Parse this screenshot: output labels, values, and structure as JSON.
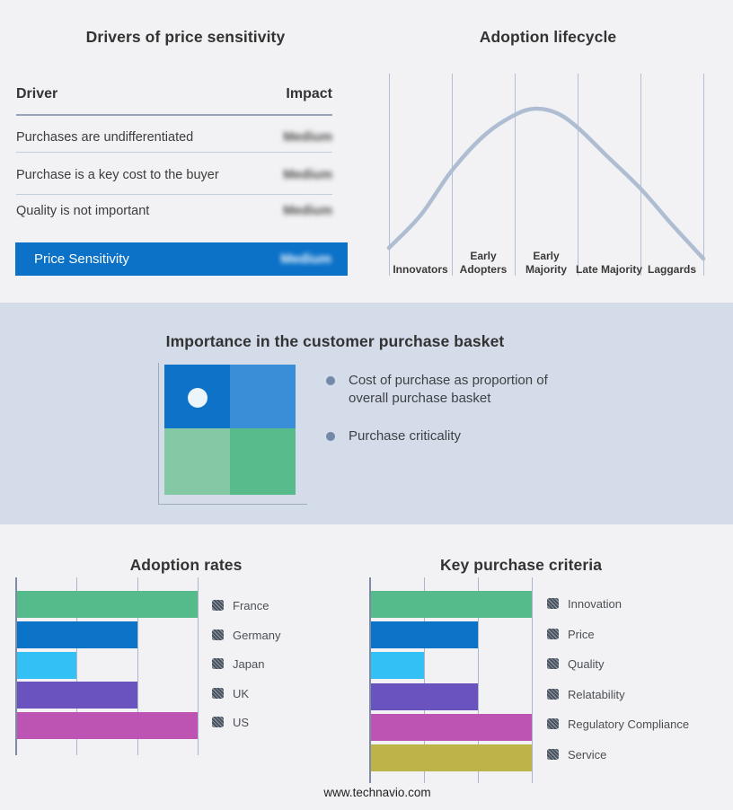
{
  "footer": {
    "text": "www.technavio.com"
  },
  "drivers_panel": {
    "title": "Drivers of price sensitivity",
    "columns": {
      "driver": "Driver",
      "impact": "Impact"
    },
    "impact_values_blurred": true,
    "rows": [
      {
        "driver": "Purchases are undifferentiated",
        "impact": "Medium"
      },
      {
        "driver": "Purchase is a key cost to the buyer",
        "impact": "Medium"
      },
      {
        "driver": "Quality is not important",
        "impact": "Medium"
      }
    ],
    "summary": {
      "label": "Price Sensitivity",
      "impact": "Medium",
      "highlight_color": "#0b72c8"
    }
  },
  "importance_panel": {
    "title": "Importance in the customer purchase basket",
    "bullets": [
      "Cost of purchase as proportion of overall purchase basket",
      "Purchase criticality"
    ],
    "matrix_colors": {
      "top_left": "#0d72c8",
      "top_right": "#3a8ed8",
      "bottom_left": "#85c8a5",
      "bottom_right": "#57bb8c"
    },
    "marker_color": "#ecf5fb"
  },
  "chart_data": [
    {
      "id": "adoption_lifecycle",
      "type": "line",
      "title": "Adoption lifecycle",
      "categories": [
        "Innovators",
        "Early Adopters",
        "Early Majority",
        "Late Majority",
        "Laggards"
      ],
      "shape": "bell curve rising from Innovators, peaking at Early Majority, falling to Laggards",
      "curve_color": "#aebdd2",
      "gridlines": true,
      "legend_position": "none",
      "curve_points": [
        [
          433,
          276
        ],
        [
          468,
          240
        ],
        [
          503,
          190
        ],
        [
          540,
          150
        ],
        [
          573,
          128
        ],
        [
          596,
          121
        ],
        [
          620,
          126
        ],
        [
          643,
          142
        ],
        [
          678,
          176
        ],
        [
          713,
          210
        ],
        [
          748,
          250
        ],
        [
          783,
          288
        ]
      ]
    },
    {
      "id": "adoption_rates",
      "type": "bar",
      "orientation": "horizontal",
      "title": "Adoption rates",
      "categories": [
        "France",
        "Germany",
        "Japan",
        "UK",
        "US"
      ],
      "values": [
        3,
        2,
        1,
        2,
        3
      ],
      "value_unit": "relative gridline units (no numeric axis labels shown)",
      "xlim": [
        0,
        3
      ],
      "colors": [
        "#55bb8b",
        "#0b73c8",
        "#33c1f5",
        "#6a53be",
        "#bd54b4"
      ],
      "legend_position": "right",
      "gridlines": true
    },
    {
      "id": "key_purchase_criteria",
      "type": "bar",
      "orientation": "horizontal",
      "title": "Key purchase criteria",
      "categories": [
        "Innovation",
        "Price",
        "Quality",
        "Relatability",
        "Regulatory Compliance",
        "Service"
      ],
      "values": [
        3,
        2,
        1,
        2,
        3,
        3
      ],
      "value_unit": "relative gridline units (no numeric axis labels shown)",
      "xlim": [
        0,
        3
      ],
      "colors": [
        "#55bb8b",
        "#0b73c8",
        "#33c1f5",
        "#6a53be",
        "#bd54b4",
        "#bcb449"
      ],
      "legend_position": "right",
      "gridlines": true
    }
  ]
}
